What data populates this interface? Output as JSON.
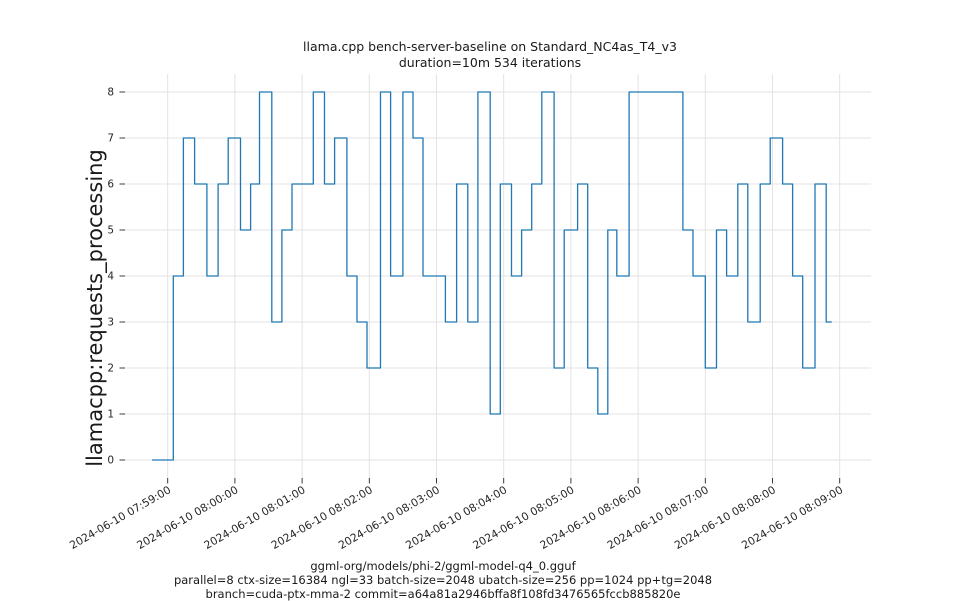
{
  "title": {
    "line1": "llama.cpp bench-server-baseline on Standard_NC4as_T4_v3",
    "line2": "duration=10m 534 iterations"
  },
  "footer": {
    "line1": "ggml-org/models/phi-2/ggml-model-q4_0.gguf",
    "line2": "parallel=8 ctx-size=16384 ngl=33 batch-size=2048 ubatch-size=256 pp=1024 pp+tg=2048",
    "line3": "branch=cuda-ptx-mma-2 commit=a64a81a2946bffa8f108fd3476565fccb885820e"
  },
  "chart_data": {
    "type": "line",
    "style": "step",
    "title": "llama.cpp bench-server-baseline on Standard_NC4as_T4_v3\nduration=10m 534 iterations",
    "ylabel": "llamacpp:requests_processing",
    "xlabel": "",
    "ylim": [
      0,
      8
    ],
    "grid": true,
    "line_color": "#1f77b4",
    "grid_color": "#e3e3e3",
    "tick_color": "#262626",
    "y_ticks": [
      0,
      1,
      2,
      3,
      4,
      5,
      6,
      7,
      8
    ],
    "x_tick_labels": [
      "2024-06-10 07:59:00",
      "2024-06-10 08:00:00",
      "2024-06-10 08:01:00",
      "2024-06-10 08:02:00",
      "2024-06-10 08:03:00",
      "2024-06-10 08:04:00",
      "2024-06-10 08:05:00",
      "2024-06-10 08:06:00",
      "2024-06-10 08:07:00",
      "2024-06-10 08:08:00",
      "2024-06-10 08:09:00"
    ],
    "first_sample_time": "2024-06-10 07:58:46",
    "point_t_unit": "seconds since first sample",
    "last_sample_offset_seconds": 607,
    "points": [
      [
        0,
        0
      ],
      [
        19,
        4
      ],
      [
        28,
        7
      ],
      [
        38,
        6
      ],
      [
        49,
        4
      ],
      [
        59,
        6
      ],
      [
        68,
        7
      ],
      [
        79,
        5
      ],
      [
        88,
        6
      ],
      [
        96,
        8
      ],
      [
        107,
        3
      ],
      [
        116,
        5
      ],
      [
        125,
        6
      ],
      [
        144,
        8
      ],
      [
        154,
        6
      ],
      [
        163,
        7
      ],
      [
        174,
        4
      ],
      [
        183,
        3
      ],
      [
        192,
        2
      ],
      [
        204,
        8
      ],
      [
        213,
        4
      ],
      [
        224,
        8
      ],
      [
        233,
        7
      ],
      [
        242,
        4
      ],
      [
        262,
        3
      ],
      [
        272,
        6
      ],
      [
        282,
        3
      ],
      [
        291,
        8
      ],
      [
        302,
        1
      ],
      [
        311,
        6
      ],
      [
        321,
        4
      ],
      [
        330,
        5
      ],
      [
        339,
        6
      ],
      [
        348,
        8
      ],
      [
        359,
        2
      ],
      [
        368,
        5
      ],
      [
        380,
        6
      ],
      [
        389,
        2
      ],
      [
        398,
        1
      ],
      [
        407,
        5
      ],
      [
        415,
        4
      ],
      [
        426,
        8
      ],
      [
        474,
        5
      ],
      [
        483,
        4
      ],
      [
        494,
        2
      ],
      [
        504,
        5
      ],
      [
        513,
        4
      ],
      [
        523,
        6
      ],
      [
        532,
        3
      ],
      [
        543,
        6
      ],
      [
        552,
        7
      ],
      [
        563,
        6
      ],
      [
        572,
        4
      ],
      [
        581,
        2
      ],
      [
        592,
        6
      ],
      [
        602,
        3
      ]
    ]
  }
}
